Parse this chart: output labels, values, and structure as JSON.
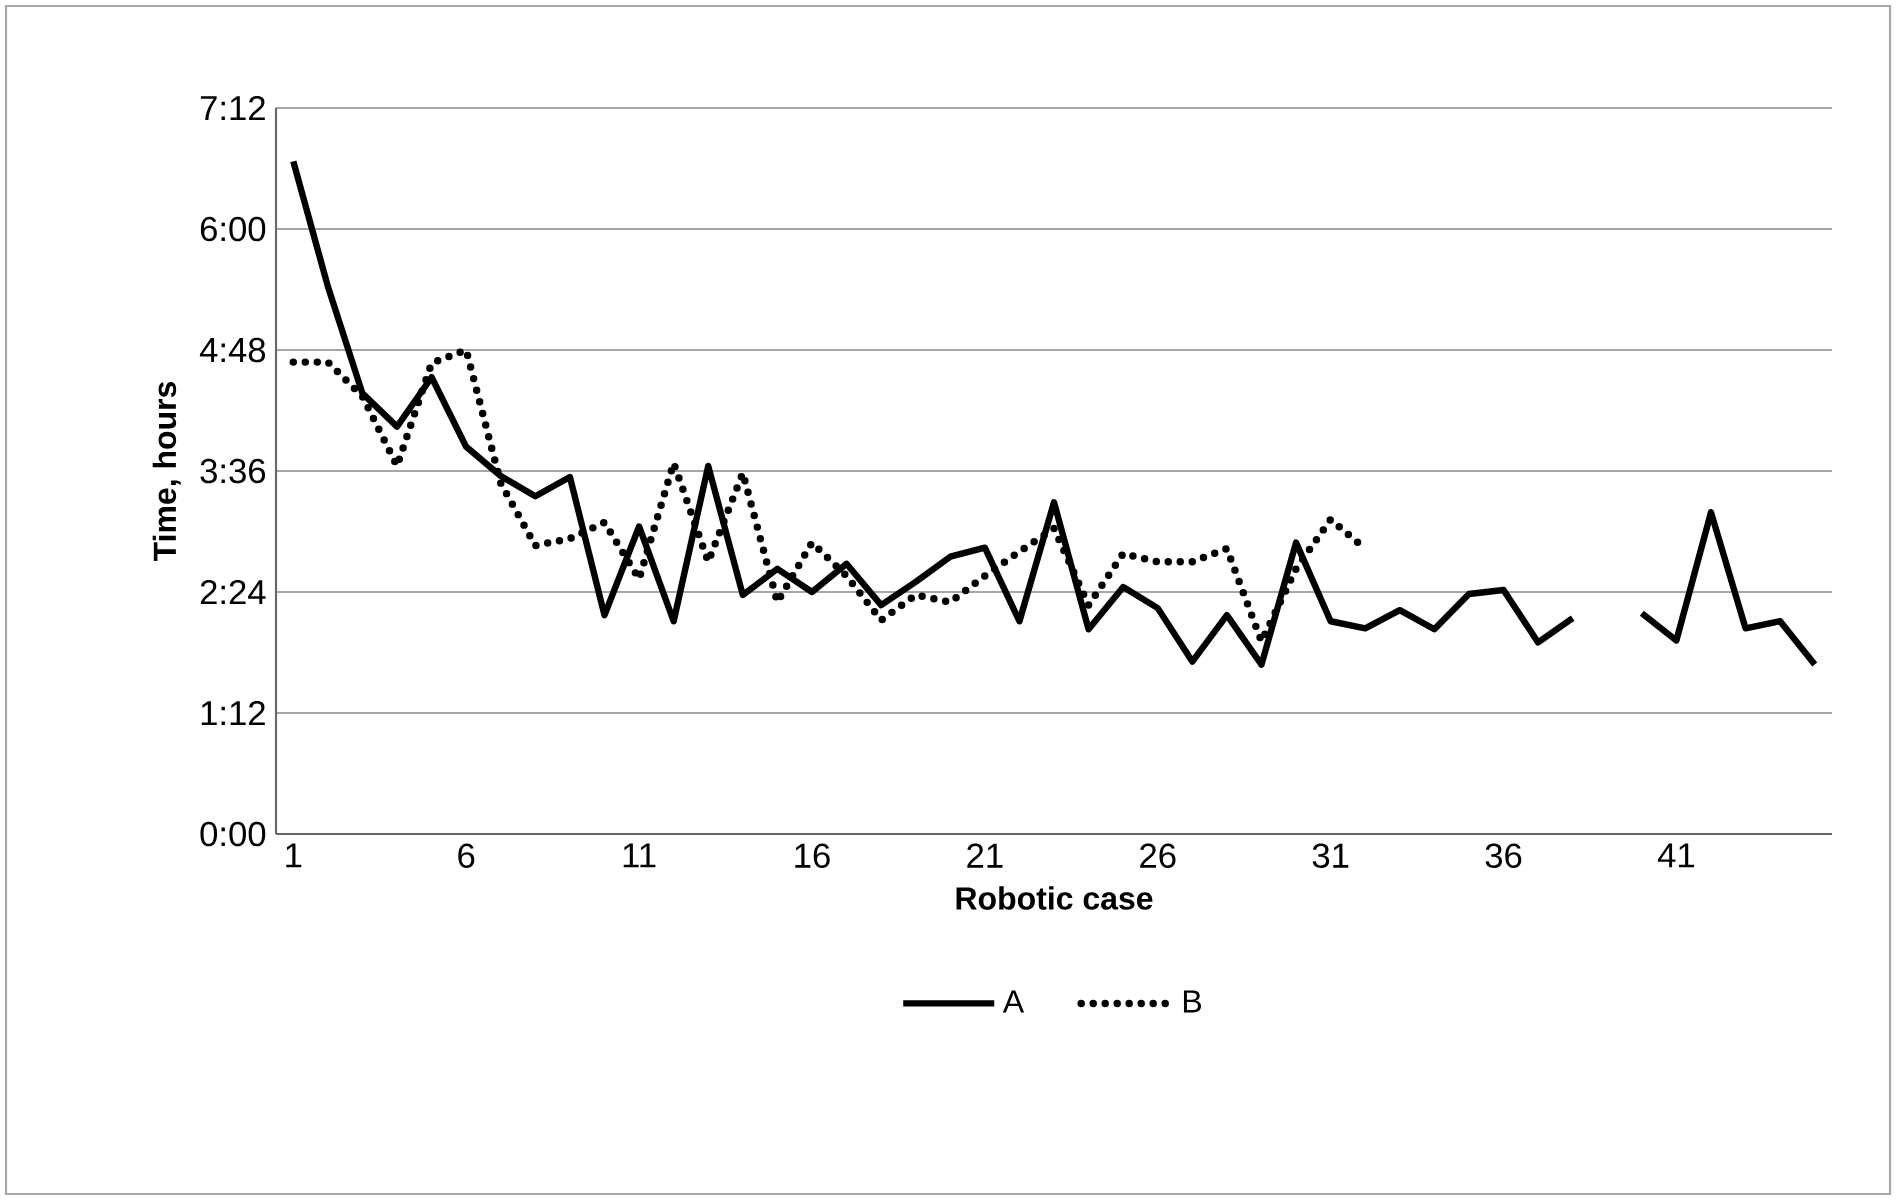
{
  "chart_data": {
    "type": "line",
    "xlabel": "Robotic case",
    "ylabel": "Time, hours",
    "categories": [
      "1",
      null,
      null,
      null,
      null,
      "6",
      null,
      null,
      null,
      null,
      "11",
      null,
      null,
      null,
      null,
      "16",
      null,
      null,
      null,
      null,
      "21",
      null,
      null,
      null,
      null,
      "26",
      null,
      null,
      null,
      null,
      "31",
      null,
      null,
      null,
      null,
      "36",
      null,
      null,
      null,
      null,
      "41",
      null,
      null,
      null,
      null
    ],
    "series": [
      {
        "name": "A",
        "color": "#000000",
        "line_style": "solid",
        "values": [
          6.67,
          5.43,
          4.37,
          4.04,
          4.53,
          3.84,
          3.55,
          3.35,
          3.54,
          2.17,
          3.05,
          2.11,
          3.65,
          2.37,
          2.63,
          2.4,
          2.68,
          2.27,
          2.5,
          2.75,
          2.84,
          2.11,
          3.29,
          2.03,
          2.45,
          2.24,
          1.71,
          2.17,
          1.68,
          2.89,
          2.11,
          2.04,
          2.22,
          2.03,
          2.38,
          2.42,
          1.9,
          2.14,
          null,
          2.19,
          1.92,
          3.19,
          2.04,
          2.11,
          1.68
        ]
      },
      {
        "name": "B",
        "color": "#000000",
        "line_style": "dotted",
        "values": [
          4.68,
          4.68,
          4.34,
          3.65,
          4.67,
          4.8,
          3.48,
          2.86,
          2.93,
          3.09,
          2.53,
          3.68,
          2.7,
          3.58,
          2.3,
          2.89,
          2.56,
          2.12,
          2.37,
          2.3,
          2.56,
          2.8,
          3.03,
          2.27,
          2.78,
          2.7,
          2.7,
          2.83,
          1.91,
          2.63,
          3.12,
          2.83,
          null,
          null,
          null,
          null,
          null,
          null,
          null,
          null,
          null,
          null,
          null,
          null,
          null
        ]
      }
    ],
    "ylim": [
      0,
      7.2
    ],
    "yticks": [
      {
        "value": 0,
        "label": "0:00"
      },
      {
        "value": 1.2,
        "label": "1:12"
      },
      {
        "value": 2.4,
        "label": "2:24"
      },
      {
        "value": 3.6,
        "label": "3:36"
      },
      {
        "value": 4.8,
        "label": "4:48"
      },
      {
        "value": 6,
        "label": "6:00"
      },
      {
        "value": 7.2,
        "label": "7:12"
      }
    ],
    "grid": "y",
    "legend": "bottom",
    "marker": "none"
  }
}
